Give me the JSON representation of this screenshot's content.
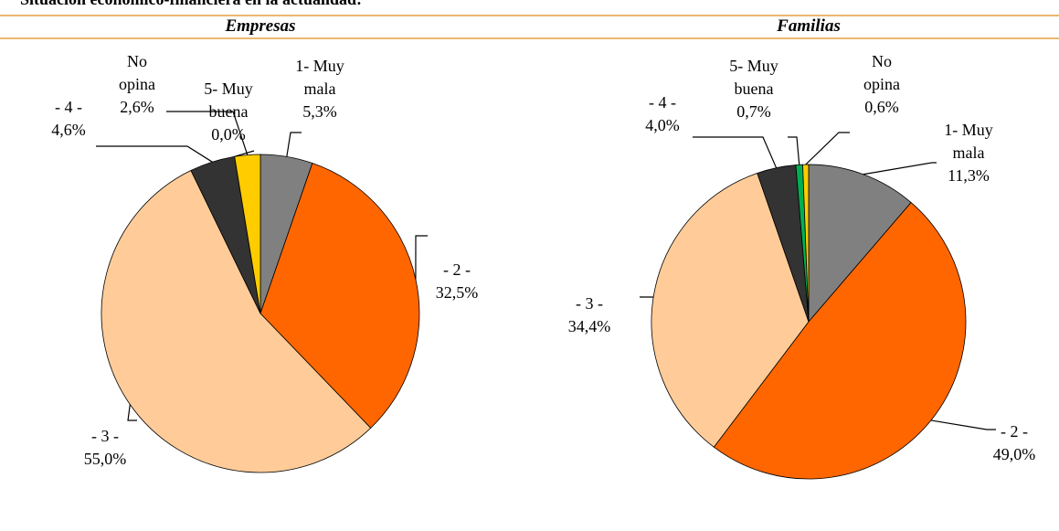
{
  "header": {
    "title": "Situación económico-financiera en la actualidad:"
  },
  "chart_data": [
    {
      "type": "pie",
      "title": "Empresas",
      "categories": [
        "1- Muy mala",
        "- 2 -",
        "- 3 -",
        "- 4 -",
        "5- Muy buena",
        "No opina"
      ],
      "values": [
        5.3,
        32.5,
        55.0,
        4.6,
        0.0,
        2.6
      ],
      "value_labels": [
        "5,3%",
        "32,5%",
        "55,0%",
        "4,6%",
        "0,0%",
        "2,6%"
      ],
      "colors": [
        "#808080",
        "#ff6600",
        "#ffcc99",
        "#333333",
        "#00b050",
        "#ffcc00"
      ]
    },
    {
      "type": "pie",
      "title": "Familias",
      "categories": [
        "1- Muy mala",
        "- 2 -",
        "- 3 -",
        "- 4 -",
        "5- Muy buena",
        "No opina"
      ],
      "values": [
        11.3,
        49.0,
        34.4,
        4.0,
        0.7,
        0.6
      ],
      "value_labels": [
        "11,3%",
        "49,0%",
        "34,4%",
        "4,0%",
        "0,7%",
        "0,6%"
      ],
      "colors": [
        "#808080",
        "#ff6600",
        "#ffcc99",
        "#333333",
        "#00b050",
        "#ffcc00"
      ]
    }
  ]
}
